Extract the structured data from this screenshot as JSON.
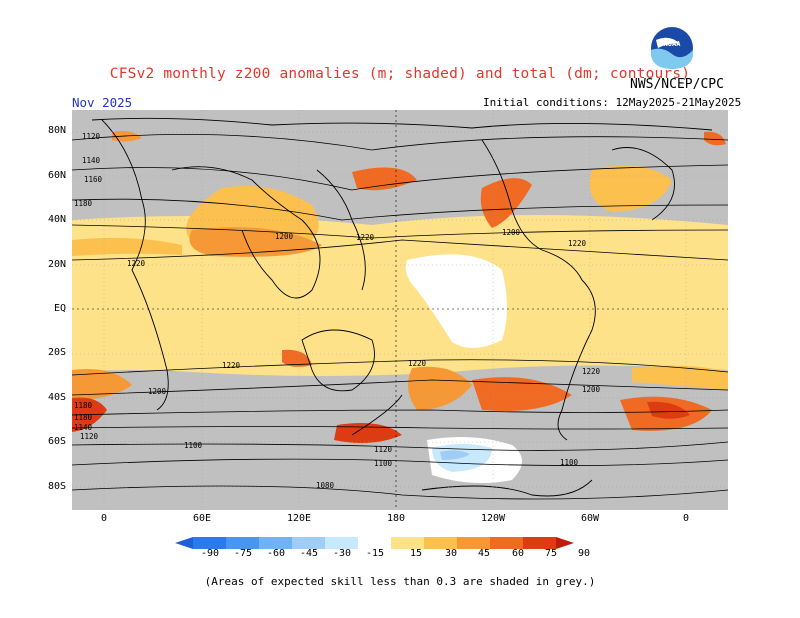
{
  "header": {
    "title": "CFSv2 monthly z200 anomalies (m; shaded) and total (dm; contours)",
    "agency": "NWS/NCEP/CPC",
    "month": "Nov 2025",
    "init_conditions": "Initial conditions: 12May2025-21May2025"
  },
  "map": {
    "lat_labels": [
      "80N",
      "60N",
      "40N",
      "20N",
      "EQ",
      "20S",
      "40S",
      "60S",
      "80S"
    ],
    "lon_labels": [
      "0",
      "60E",
      "120E",
      "180",
      "120W",
      "60W",
      "0"
    ],
    "contour_labels": [
      "1120",
      "1140",
      "1160",
      "1180",
      "1200",
      "1220",
      "1100",
      "1080"
    ],
    "colors": {
      "grey": "#c0c0c0",
      "ocean": "#ffffff",
      "coast": "#000000"
    }
  },
  "colorbar": {
    "ticks": [
      "-90",
      "-75",
      "-60",
      "-45",
      "-30",
      "-15",
      "15",
      "30",
      "45",
      "60",
      "75",
      "90"
    ],
    "colors": [
      "#1e60d8",
      "#2c79e9",
      "#4a95ee",
      "#72b1f2",
      "#a0cdf6",
      "#c8e8fb",
      "#ffffff",
      "#fde28a",
      "#fbc04e",
      "#f79837",
      "#f06a24",
      "#dd3b12",
      "#c01b0a"
    ]
  },
  "footer": {
    "note": "(Areas of expected skill less than 0.3 are shaded in grey.)"
  }
}
